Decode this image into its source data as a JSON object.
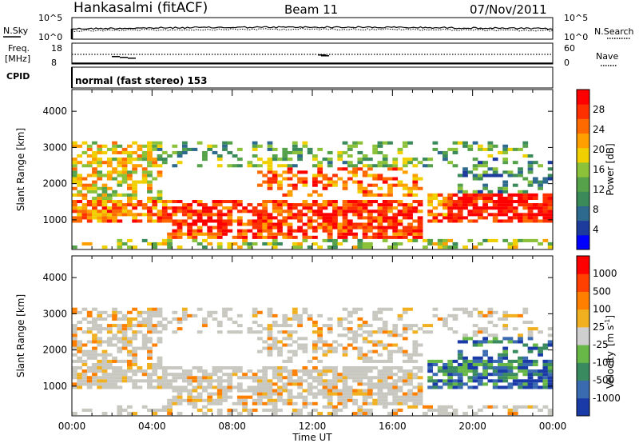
{
  "header": {
    "station": "Hankasalmi (fitACF)",
    "beam": "Beam 11",
    "date": "07/Nov/2011"
  },
  "noise_panel": {
    "left_label": "N.Sky",
    "right_label": "N.Search",
    "left_ticks": [
      "10^5",
      "10^0"
    ],
    "right_ticks": [
      "10^5",
      "10^0"
    ]
  },
  "freq_panel": {
    "left_label": "Freq.",
    "left_unit": "[MHz]",
    "right_label": "Nave",
    "left_ticks": [
      "18",
      "8"
    ],
    "right_ticks": [
      "60",
      "0"
    ]
  },
  "cpid": {
    "label": "CPID",
    "mode_text": "normal (fast stereo) 153"
  },
  "chart_data": [
    {
      "type": "heatmap",
      "ylabel": "Slant Range [km]",
      "xlabel": "Time UT",
      "x_ticks": [
        "00:00",
        "04:00",
        "08:00",
        "12:00",
        "16:00",
        "20:00",
        "00:00"
      ],
      "y_ticks": [
        "1000",
        "2000",
        "3000",
        "4000"
      ],
      "ylim": [
        180,
        4600
      ],
      "colorbar": {
        "label": "Power [dB]",
        "ticks": [
          "28",
          "24",
          "20",
          "16",
          "12",
          "8",
          "4"
        ],
        "colors": [
          "#0000ff",
          "#1c3b9c",
          "#2e6a8e",
          "#3a8a5a",
          "#55a24b",
          "#8cc23a",
          "#f0d000",
          "#ffa000",
          "#ff6a00",
          "#ff3000",
          "#ff0000"
        ]
      }
    },
    {
      "type": "heatmap",
      "ylabel": "Slant Range [km]",
      "xlabel": "Time UT",
      "x_ticks": [
        "00:00",
        "04:00",
        "08:00",
        "12:00",
        "16:00",
        "20:00",
        "00:00"
      ],
      "y_ticks": [
        "1000",
        "2000",
        "3000",
        "4000"
      ],
      "ylim": [
        180,
        4600
      ],
      "colorbar": {
        "label": "Velocity",
        "unit": "[m s",
        "unit_exp": "-1",
        "unit_close": "]",
        "ticks": [
          "1000",
          "500",
          "100",
          "25",
          "-25",
          "-100",
          "-500",
          "-1000"
        ],
        "colors": [
          "#1a3aa8",
          "#3a6ab0",
          "#3a8a60",
          "#68b848",
          "#cfcfcf",
          "#f0b020",
          "#ff8000",
          "#ff4000",
          "#ff0000"
        ]
      }
    }
  ],
  "colors": {
    "ground_scatter": "#c8c8c0",
    "background": "#ffffff",
    "axis": "#000000"
  }
}
